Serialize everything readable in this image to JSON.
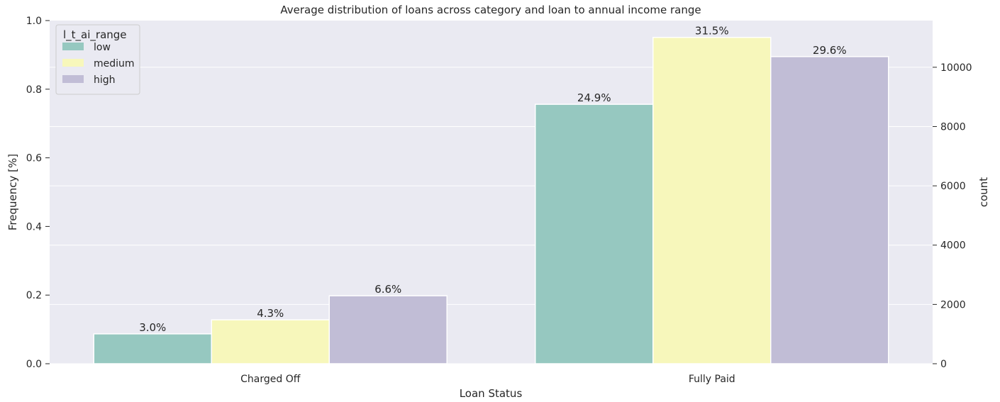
{
  "chart_data": {
    "type": "bar",
    "title": "Average distribution of loans across category and loan to annual income range",
    "xlabel": "Loan Status",
    "ylabel": "Frequency [%]",
    "y2label": "count",
    "categories": [
      "Charged Off",
      "Fully Paid"
    ],
    "ylim": [
      0,
      1.0
    ],
    "yticks": [
      "0.0",
      "0.2",
      "0.4",
      "0.6",
      "0.8",
      "1.0"
    ],
    "y2lim": [
      0,
      11575
    ],
    "y2ticks": [
      "0",
      "2000",
      "4000",
      "6000",
      "8000",
      "10000"
    ],
    "y2tick_values": [
      0,
      2000,
      4000,
      6000,
      8000,
      10000
    ],
    "grid": true,
    "legend": {
      "title": "l_t_ai_range",
      "placement": "top-left"
    },
    "series": [
      {
        "name": "low",
        "color": "#96c8c0",
        "values": [
          0.087,
          0.756
        ],
        "labels": [
          "3.0%",
          "24.9%"
        ]
      },
      {
        "name": "medium",
        "color": "#f7f7bb",
        "values": [
          0.128,
          0.951
        ],
        "labels": [
          "4.3%",
          "31.5%"
        ]
      },
      {
        "name": "high",
        "color": "#c1bdd6",
        "values": [
          0.198,
          0.895
        ],
        "labels": [
          "6.6%",
          "29.6%"
        ]
      }
    ],
    "background": "#eaeaf2"
  }
}
